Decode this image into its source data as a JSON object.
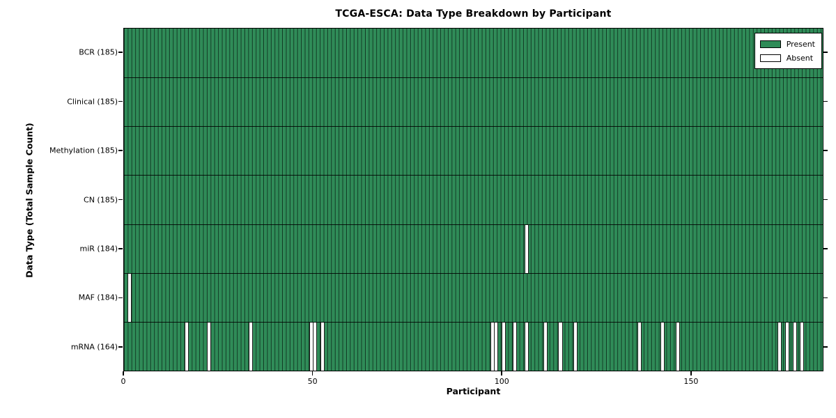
{
  "chart_data": {
    "type": "heatmap",
    "title": "TCGA-ESCA: Data Type Breakdown by Participant",
    "xlabel": "Participant",
    "ylabel": "Data Type (Total Sample Count)",
    "xlim": [
      0,
      185
    ],
    "n_participants": 185,
    "x_ticks": [
      0,
      50,
      100,
      150
    ],
    "grid": false,
    "legend_position": "upper right",
    "legend": [
      {
        "label": "Present",
        "color": "#2e8b57"
      },
      {
        "label": "Absent",
        "color": "#ffffff"
      }
    ],
    "colors": {
      "present": "#2e8b57",
      "absent": "#ffffff",
      "edge": "#000000"
    },
    "rows": [
      {
        "name": "BCR",
        "label": "BCR (185)",
        "present_count": 185,
        "absent_participants": []
      },
      {
        "name": "Clinical",
        "label": "Clinical (185)",
        "present_count": 185,
        "absent_participants": []
      },
      {
        "name": "Methylation",
        "label": "Methylation (185)",
        "present_count": 185,
        "absent_participants": []
      },
      {
        "name": "CN",
        "label": "CN (185)",
        "present_count": 185,
        "absent_participants": []
      },
      {
        "name": "miR",
        "label": "miR (184)",
        "present_count": 184,
        "absent_participants": [
          106
        ]
      },
      {
        "name": "MAF",
        "label": "MAF (184)",
        "present_count": 184,
        "absent_participants": [
          1
        ]
      },
      {
        "name": "mRNA",
        "label": "mRNA (164)",
        "present_count": 164,
        "absent_participants": [
          16,
          22,
          33,
          49,
          50,
          52,
          97,
          98,
          100,
          103,
          106,
          111,
          115,
          119,
          136,
          142,
          146,
          173,
          175,
          177,
          179
        ]
      }
    ]
  }
}
